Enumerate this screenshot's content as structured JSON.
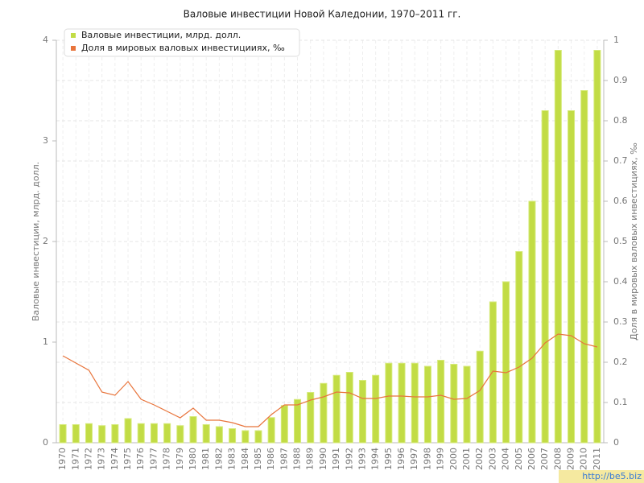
{
  "chart_data": {
    "type": "bar_line",
    "title": "Валовые инвестиции Новой Каледонии, 1970–2011 гг.",
    "y_label": "Валовые инвестиции, млрд. долл.",
    "y2_label": "Доля в мировых валовых инвестициях, ‰",
    "watermark": "http://be5.biz",
    "categories": [
      "1970",
      "1971",
      "1972",
      "1973",
      "1974",
      "1975",
      "1976",
      "1977",
      "1978",
      "1979",
      "1980",
      "1981",
      "1982",
      "1983",
      "1984",
      "1985",
      "1986",
      "1987",
      "1988",
      "1989",
      "1990",
      "1991",
      "1992",
      "1993",
      "1994",
      "1995",
      "1996",
      "1997",
      "1998",
      "1999",
      "2000",
      "2001",
      "2002",
      "2003",
      "2004",
      "2005",
      "2006",
      "2007",
      "2008",
      "2009",
      "2010",
      "2011"
    ],
    "series": [
      {
        "name": "Валовые инвестиции, млрд. долл.",
        "color": "#c2dc45",
        "type": "bar",
        "values": [
          0.18,
          0.18,
          0.19,
          0.17,
          0.18,
          0.24,
          0.19,
          0.19,
          0.19,
          0.17,
          0.26,
          0.18,
          0.16,
          0.14,
          0.12,
          0.12,
          0.25,
          0.37,
          0.43,
          0.5,
          0.59,
          0.67,
          0.7,
          0.62,
          0.67,
          0.79,
          0.79,
          0.79,
          0.76,
          0.82,
          0.78,
          0.76,
          0.91,
          1.4,
          1.6,
          1.9,
          2.4,
          3.3,
          3.9,
          3.3,
          3.5,
          3.9
        ]
      },
      {
        "name": "Доля в мировых валовых инвестицииях, ‰",
        "color": "#e8743b",
        "type": "line",
        "axis": "y2",
        "values": [
          0.216,
          0.198,
          0.18,
          0.126,
          0.118,
          0.152,
          0.108,
          0.094,
          0.078,
          0.062,
          0.086,
          0.056,
          0.056,
          0.05,
          0.04,
          0.04,
          0.07,
          0.094,
          0.094,
          0.106,
          0.114,
          0.126,
          0.124,
          0.11,
          0.11,
          0.116,
          0.116,
          0.114,
          0.114,
          0.118,
          0.108,
          0.11,
          0.13,
          0.178,
          0.174,
          0.188,
          0.21,
          0.248,
          0.27,
          0.266,
          0.246,
          0.238
        ]
      }
    ],
    "ylim": [
      0,
      4
    ],
    "yticks": [
      0,
      1,
      2,
      3,
      4
    ],
    "y2lim": [
      0,
      1
    ],
    "y2ticks": [
      0,
      0.1,
      0.2,
      0.3,
      0.4,
      0.5,
      0.6,
      0.7,
      0.8,
      0.9,
      1
    ],
    "grid": true,
    "legend": "top-left"
  }
}
